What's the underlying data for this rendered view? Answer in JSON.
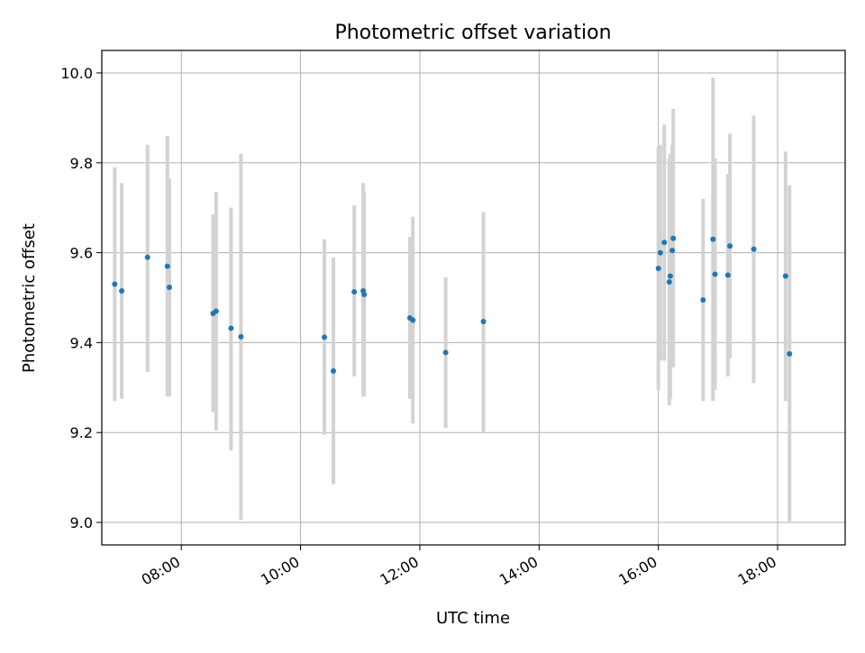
{
  "chart_data": {
    "type": "scatter",
    "title": "Photometric offset variation",
    "xlabel": "UTC time",
    "ylabel": "Photometric offset",
    "x_unit": "HH:MM",
    "xlim": [
      "06:40",
      "19:08"
    ],
    "ylim": [
      8.95,
      10.05
    ],
    "x_ticks": [
      "08:00",
      "10:00",
      "12:00",
      "14:00",
      "16:00",
      "18:00"
    ],
    "y_ticks": [
      9.0,
      9.2,
      9.4,
      9.6,
      9.8,
      10.0
    ],
    "y_tick_labels": [
      "9.0",
      "9.2",
      "9.4",
      "9.6",
      "9.8",
      "10.0"
    ],
    "grid": true,
    "legend": "none",
    "colors": {
      "marker": "#1f77b4",
      "errorbar": "#d3d3d3",
      "grid": "#b0b0b0"
    },
    "points": [
      {
        "x": "06:53",
        "y": 9.53,
        "y_low": 9.27,
        "y_high": 9.79
      },
      {
        "x": "07:00",
        "y": 9.515,
        "y_low": 9.275,
        "y_high": 9.755
      },
      {
        "x": "07:26",
        "y": 9.59,
        "y_low": 9.335,
        "y_high": 9.84
      },
      {
        "x": "07:46",
        "y": 9.57,
        "y_low": 9.28,
        "y_high": 9.86
      },
      {
        "x": "07:48",
        "y": 9.523,
        "y_low": 9.28,
        "y_high": 9.765
      },
      {
        "x": "08:32",
        "y": 9.465,
        "y_low": 9.245,
        "y_high": 9.685
      },
      {
        "x": "08:35",
        "y": 9.47,
        "y_low": 9.205,
        "y_high": 9.735
      },
      {
        "x": "08:50",
        "y": 9.432,
        "y_low": 9.16,
        "y_high": 9.7
      },
      {
        "x": "09:00",
        "y": 9.413,
        "y_low": 9.005,
        "y_high": 9.82
      },
      {
        "x": "10:24",
        "y": 9.412,
        "y_low": 9.195,
        "y_high": 9.63
      },
      {
        "x": "10:33",
        "y": 9.337,
        "y_low": 9.085,
        "y_high": 9.59
      },
      {
        "x": "10:54",
        "y": 9.513,
        "y_low": 9.325,
        "y_high": 9.705
      },
      {
        "x": "11:03",
        "y": 9.515,
        "y_low": 9.28,
        "y_high": 9.755
      },
      {
        "x": "11:04",
        "y": 9.507,
        "y_low": 9.28,
        "y_high": 9.735
      },
      {
        "x": "11:50",
        "y": 9.455,
        "y_low": 9.275,
        "y_high": 9.635
      },
      {
        "x": "11:53",
        "y": 9.45,
        "y_low": 9.22,
        "y_high": 9.68
      },
      {
        "x": "12:26",
        "y": 9.378,
        "y_low": 9.21,
        "y_high": 9.545
      },
      {
        "x": "13:04",
        "y": 9.447,
        "y_low": 9.2,
        "y_high": 9.69
      },
      {
        "x": "16:00",
        "y": 9.565,
        "y_low": 9.295,
        "y_high": 9.835
      },
      {
        "x": "16:02",
        "y": 9.6,
        "y_low": 9.36,
        "y_high": 9.84
      },
      {
        "x": "16:06",
        "y": 9.623,
        "y_low": 9.36,
        "y_high": 9.885
      },
      {
        "x": "16:11",
        "y": 9.535,
        "y_low": 9.26,
        "y_high": 9.81
      },
      {
        "x": "16:12",
        "y": 9.548,
        "y_low": 9.275,
        "y_high": 9.82
      },
      {
        "x": "16:14",
        "y": 9.605,
        "y_low": 9.37,
        "y_high": 9.84
      },
      {
        "x": "16:15",
        "y": 9.632,
        "y_low": 9.345,
        "y_high": 9.92
      },
      {
        "x": "16:45",
        "y": 9.495,
        "y_low": 9.27,
        "y_high": 9.72
      },
      {
        "x": "16:55",
        "y": 9.63,
        "y_low": 9.27,
        "y_high": 9.99
      },
      {
        "x": "16:57",
        "y": 9.552,
        "y_low": 9.295,
        "y_high": 9.81
      },
      {
        "x": "17:10",
        "y": 9.55,
        "y_low": 9.325,
        "y_high": 9.775
      },
      {
        "x": "17:12",
        "y": 9.615,
        "y_low": 9.365,
        "y_high": 9.865
      },
      {
        "x": "17:36",
        "y": 9.608,
        "y_low": 9.31,
        "y_high": 9.905
      },
      {
        "x": "18:08",
        "y": 9.548,
        "y_low": 9.27,
        "y_high": 9.825
      },
      {
        "x": "18:12",
        "y": 9.375,
        "y_low": 9.0,
        "y_high": 9.75
      }
    ]
  }
}
